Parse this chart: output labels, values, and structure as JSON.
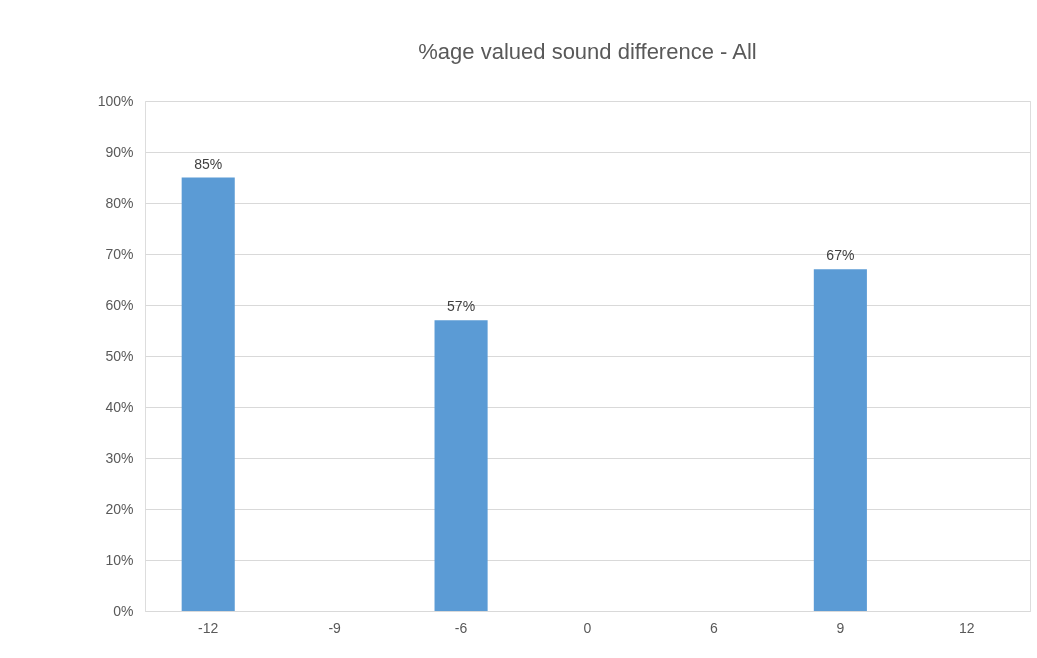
{
  "chart_data": {
    "type": "bar",
    "title": "%age valued sound difference - All",
    "categories": [
      "-12",
      "-9",
      "-6",
      "0",
      "6",
      "9",
      "12"
    ],
    "values": [
      85,
      null,
      57,
      null,
      null,
      67,
      null
    ],
    "value_labels": [
      "85%",
      null,
      "57%",
      null,
      null,
      "67%",
      null
    ],
    "color": "#5b9bd5",
    "ylim": [
      0,
      100
    ],
    "yticks": [
      {
        "value": 0,
        "label": "0%"
      },
      {
        "value": 10,
        "label": "10%"
      },
      {
        "value": 20,
        "label": "20%"
      },
      {
        "value": 30,
        "label": "30%"
      },
      {
        "value": 40,
        "label": "40%"
      },
      {
        "value": 50,
        "label": "50%"
      },
      {
        "value": 60,
        "label": "60%"
      },
      {
        "value": 70,
        "label": "70%"
      },
      {
        "value": 80,
        "label": "80%"
      },
      {
        "value": 90,
        "label": "90%"
      },
      {
        "value": 100,
        "label": "100%"
      }
    ],
    "grid": "y"
  }
}
